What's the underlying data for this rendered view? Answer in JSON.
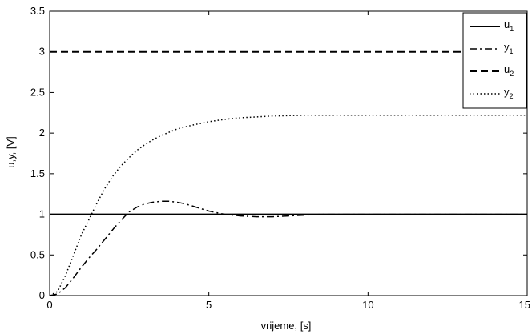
{
  "chart_data": {
    "type": "line",
    "title": "",
    "xlabel": "vrijeme, [s]",
    "ylabel": "u,y, [V]",
    "xlim": [
      0,
      15
    ],
    "ylim": [
      0,
      3.5
    ],
    "xticks": [
      "0",
      "5",
      "10",
      "15"
    ],
    "yticks": [
      "0",
      "0.5",
      "1",
      "1.5",
      "2",
      "2.5",
      "3",
      "3.5"
    ],
    "grid": false,
    "legend_position": "top-right",
    "series": [
      {
        "name": "u",
        "name_sub": "1",
        "style": "solid",
        "color": "#000000",
        "x": [
          0,
          0.5,
          1,
          5,
          10,
          15
        ],
        "y": [
          1,
          1,
          1,
          1,
          1,
          1
        ]
      },
      {
        "name": "y",
        "name_sub": "1",
        "style": "dashdot",
        "color": "#000000",
        "x": [
          0,
          0.25,
          0.5,
          0.75,
          1,
          1.25,
          1.5,
          1.75,
          2,
          2.25,
          2.5,
          2.75,
          3,
          3.25,
          3.5,
          3.75,
          4,
          4.25,
          4.5,
          4.75,
          5,
          5.5,
          6,
          6.5,
          7,
          7.5,
          8,
          8.5,
          9,
          10,
          11,
          12,
          13,
          14,
          15
        ],
        "y": [
          0,
          0.02,
          0.1,
          0.22,
          0.35,
          0.47,
          0.58,
          0.7,
          0.82,
          0.93,
          1.03,
          1.09,
          1.13,
          1.15,
          1.16,
          1.16,
          1.15,
          1.13,
          1.1,
          1.07,
          1.04,
          1.0,
          0.98,
          0.97,
          0.97,
          0.98,
          0.99,
          1.0,
          1.0,
          1.0,
          1.0,
          1.0,
          1.0,
          1.0,
          1.0
        ]
      },
      {
        "name": "u",
        "name_sub": "2",
        "style": "dashed",
        "color": "#000000",
        "x": [
          0,
          5,
          10,
          15
        ],
        "y": [
          3,
          3,
          3,
          3
        ]
      },
      {
        "name": "y",
        "name_sub": "2",
        "style": "dotted",
        "color": "#000000",
        "x": [
          0,
          0.25,
          0.5,
          0.75,
          1,
          1.25,
          1.5,
          1.75,
          2,
          2.25,
          2.5,
          2.75,
          3,
          3.25,
          3.5,
          3.75,
          4,
          4.5,
          5,
          5.5,
          6,
          6.5,
          7,
          7.5,
          8,
          9,
          10,
          11,
          12,
          13,
          14,
          15
        ],
        "y": [
          0,
          0.05,
          0.25,
          0.5,
          0.75,
          0.95,
          1.15,
          1.33,
          1.48,
          1.6,
          1.7,
          1.79,
          1.86,
          1.92,
          1.97,
          2.01,
          2.05,
          2.1,
          2.14,
          2.17,
          2.19,
          2.2,
          2.21,
          2.215,
          2.22,
          2.22,
          2.22,
          2.22,
          2.22,
          2.22,
          2.22,
          2.22
        ]
      }
    ]
  }
}
